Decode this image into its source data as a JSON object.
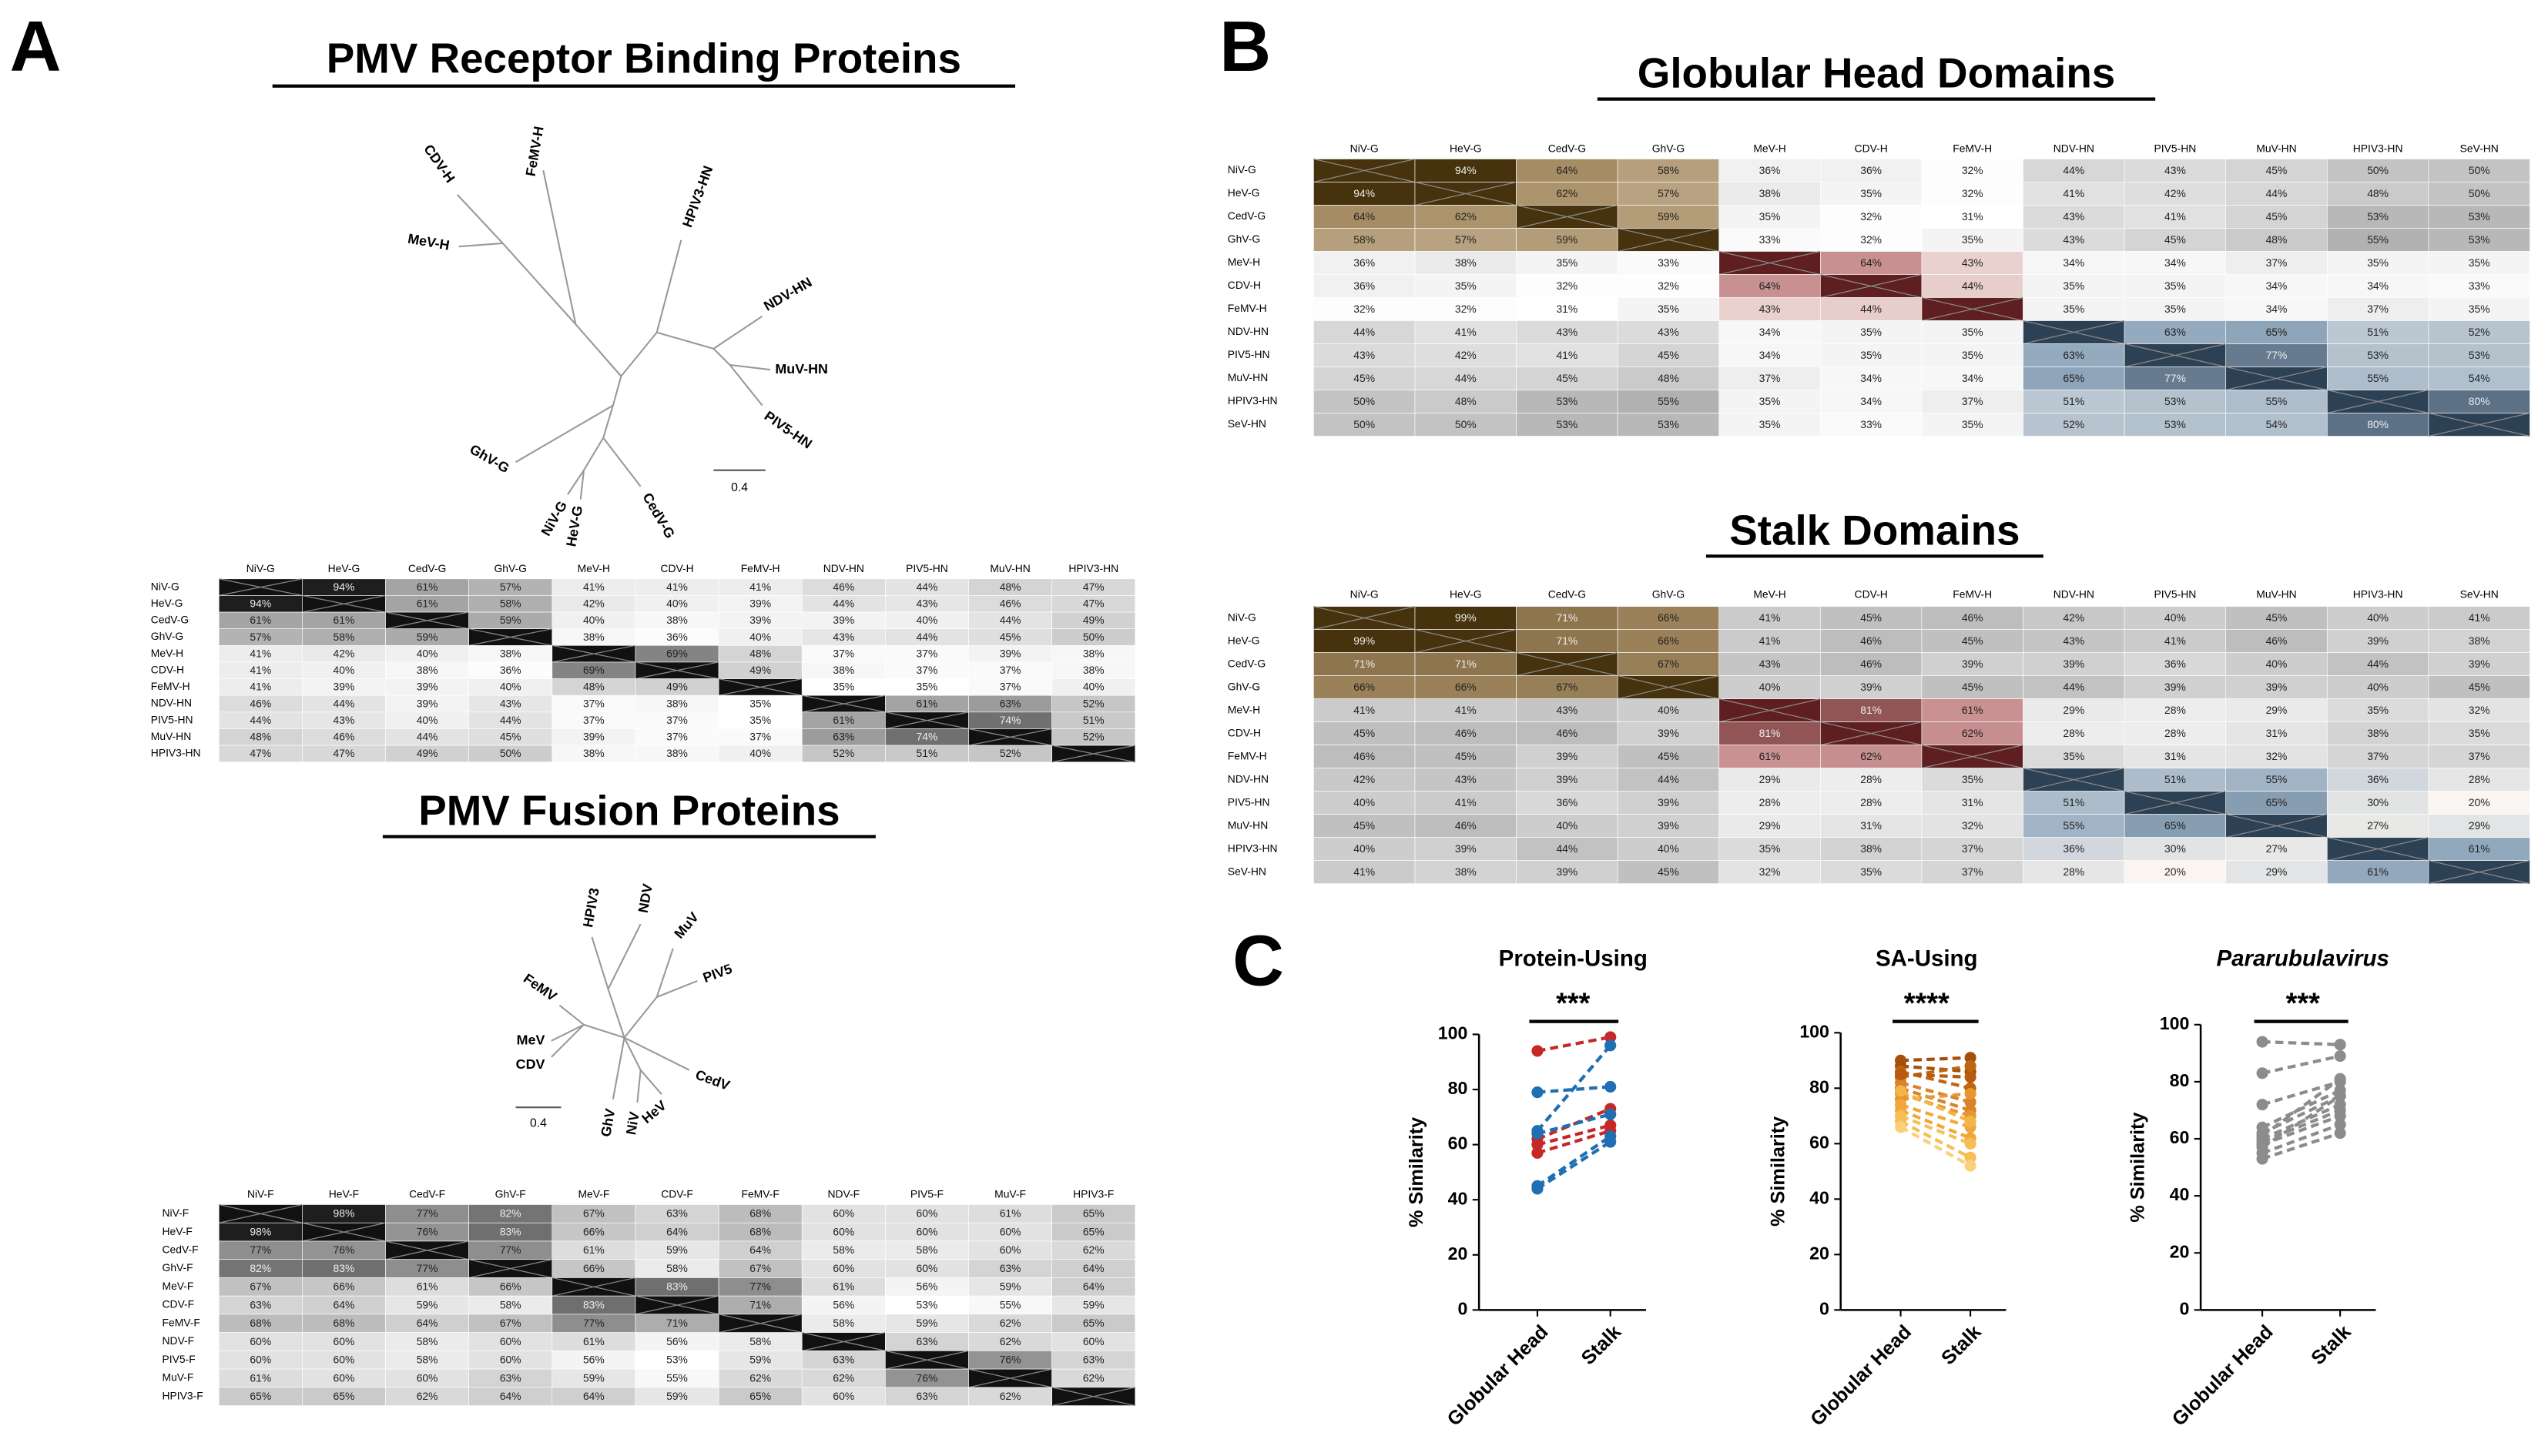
{
  "panel_labels": [
    "A",
    "B",
    "C"
  ],
  "panel_a": {
    "rbp": {
      "title": "PMV Receptor Binding Proteins",
      "tree": {
        "labels": [
          "FeMV-H",
          "CDV-H",
          "MeV-H",
          "HPIV3-HN",
          "NDV-HN",
          "MuV-HN",
          "PIV5-HN",
          "GhV-G",
          "NiV-G",
          "HeV-G",
          "CedV-G"
        ],
        "scale": "0.4"
      },
      "matrix": {
        "columns": [
          "NiV-G",
          "HeV-G",
          "CedV-G",
          "GhV-G",
          "MeV-H",
          "CDV-H",
          "FeMV-H",
          "NDV-HN",
          "PIV5-HN",
          "MuV-HN",
          "HPIV3-HN"
        ],
        "rows": [
          "NiV-G",
          "HeV-G",
          "CedV-G",
          "GhV-G",
          "MeV-H",
          "CDV-H",
          "FeMV-H",
          "NDV-HN",
          "PIV5-HN",
          "MuV-HN",
          "HPIV3-HN"
        ],
        "cells": [
          [
            null,
            "94%",
            "61%",
            "57%",
            "41%",
            "41%",
            "41%",
            "46%",
            "44%",
            "48%",
            "47%"
          ],
          [
            "94%",
            null,
            "61%",
            "58%",
            "42%",
            "40%",
            "39%",
            "44%",
            "43%",
            "46%",
            "47%"
          ],
          [
            "61%",
            "61%",
            null,
            "59%",
            "40%",
            "38%",
            "39%",
            "39%",
            "40%",
            "44%",
            "49%"
          ],
          [
            "57%",
            "58%",
            "59%",
            null,
            "38%",
            "36%",
            "40%",
            "43%",
            "44%",
            "45%",
            "50%"
          ],
          [
            "41%",
            "42%",
            "40%",
            "38%",
            null,
            "69%",
            "48%",
            "37%",
            "37%",
            "39%",
            "38%"
          ],
          [
            "41%",
            "40%",
            "38%",
            "36%",
            "69%",
            null,
            "49%",
            "38%",
            "37%",
            "37%",
            "38%"
          ],
          [
            "41%",
            "39%",
            "39%",
            "40%",
            "48%",
            "49%",
            null,
            "35%",
            "35%",
            "37%",
            "40%"
          ],
          [
            "46%",
            "44%",
            "39%",
            "43%",
            "37%",
            "38%",
            "35%",
            null,
            "61%",
            "63%",
            "52%"
          ],
          [
            "44%",
            "43%",
            "40%",
            "44%",
            "37%",
            "37%",
            "35%",
            "61%",
            null,
            "74%",
            "51%"
          ],
          [
            "48%",
            "46%",
            "44%",
            "45%",
            "39%",
            "37%",
            "37%",
            "63%",
            "74%",
            null,
            "52%"
          ],
          [
            "47%",
            "47%",
            "49%",
            "50%",
            "38%",
            "38%",
            "40%",
            "52%",
            "51%",
            "52%",
            null
          ]
        ]
      }
    },
    "fusion": {
      "title": "PMV Fusion Proteins",
      "tree": {
        "labels": [
          "HPIV3",
          "NDV",
          "MuV",
          "PIV5",
          "FeMV",
          "MeV",
          "CDV",
          "GhV",
          "NiV",
          "HeV",
          "CedV"
        ],
        "scale": "0.4"
      },
      "matrix": {
        "columns": [
          "NiV-F",
          "HeV-F",
          "CedV-F",
          "GhV-F",
          "MeV-F",
          "CDV-F",
          "FeMV-F",
          "NDV-F",
          "PIV5-F",
          "MuV-F",
          "HPIV3-F"
        ],
        "rows": [
          "NiV-F",
          "HeV-F",
          "CedV-F",
          "GhV-F",
          "MeV-F",
          "CDV-F",
          "FeMV-F",
          "NDV-F",
          "PIV5-F",
          "MuV-F",
          "HPIV3-F"
        ],
        "cells": [
          [
            null,
            "98%",
            "77%",
            "82%",
            "67%",
            "63%",
            "68%",
            "60%",
            "60%",
            "61%",
            "65%"
          ],
          [
            "98%",
            null,
            "76%",
            "83%",
            "66%",
            "64%",
            "68%",
            "60%",
            "60%",
            "60%",
            "65%"
          ],
          [
            "77%",
            "76%",
            null,
            "77%",
            "61%",
            "59%",
            "64%",
            "58%",
            "58%",
            "60%",
            "62%"
          ],
          [
            "82%",
            "83%",
            "77%",
            null,
            "66%",
            "58%",
            "67%",
            "60%",
            "60%",
            "63%",
            "64%"
          ],
          [
            "67%",
            "66%",
            "61%",
            "66%",
            null,
            "83%",
            "77%",
            "61%",
            "56%",
            "59%",
            "64%"
          ],
          [
            "63%",
            "64%",
            "59%",
            "58%",
            "83%",
            null,
            "71%",
            "56%",
            "53%",
            "55%",
            "59%"
          ],
          [
            "68%",
            "68%",
            "64%",
            "67%",
            "77%",
            "71%",
            null,
            "58%",
            "59%",
            "62%",
            "65%"
          ],
          [
            "60%",
            "60%",
            "58%",
            "60%",
            "61%",
            "56%",
            "58%",
            null,
            "63%",
            "62%",
            "60%"
          ],
          [
            "60%",
            "60%",
            "58%",
            "60%",
            "56%",
            "53%",
            "59%",
            "63%",
            null,
            "76%",
            "63%"
          ],
          [
            "61%",
            "60%",
            "60%",
            "63%",
            "59%",
            "55%",
            "62%",
            "62%",
            "76%",
            null,
            "62%"
          ],
          [
            "65%",
            "65%",
            "62%",
            "64%",
            "64%",
            "59%",
            "65%",
            "60%",
            "63%",
            "62%",
            null
          ]
        ]
      }
    }
  },
  "panel_b": {
    "globular": {
      "title": "Globular Head Domains",
      "matrix": {
        "columns": [
          "NiV-G",
          "HeV-G",
          "CedV-G",
          "GhV-G",
          "MeV-H",
          "CDV-H",
          "FeMV-H",
          "NDV-HN",
          "PIV5-HN",
          "MuV-HN",
          "HPIV3-HN",
          "SeV-HN"
        ],
        "rows": [
          "NiV-G",
          "HeV-G",
          "CedV-G",
          "GhV-G",
          "MeV-H",
          "CDV-H",
          "FeMV-H",
          "NDV-HN",
          "PIV5-HN",
          "MuV-HN",
          "HPIV3-HN",
          "SeV-HN"
        ],
        "cells": [
          [
            null,
            "94%",
            "64%",
            "58%",
            "36%",
            "36%",
            "32%",
            "44%",
            "43%",
            "45%",
            "50%",
            "50%"
          ],
          [
            "94%",
            null,
            "62%",
            "57%",
            "38%",
            "35%",
            "32%",
            "41%",
            "42%",
            "44%",
            "48%",
            "50%"
          ],
          [
            "64%",
            "62%",
            null,
            "59%",
            "35%",
            "32%",
            "31%",
            "43%",
            "41%",
            "45%",
            "53%",
            "53%"
          ],
          [
            "58%",
            "57%",
            "59%",
            null,
            "33%",
            "32%",
            "35%",
            "43%",
            "45%",
            "48%",
            "55%",
            "53%"
          ],
          [
            "36%",
            "38%",
            "35%",
            "33%",
            null,
            "64%",
            "43%",
            "34%",
            "34%",
            "37%",
            "35%",
            "35%"
          ],
          [
            "36%",
            "35%",
            "32%",
            "32%",
            "64%",
            null,
            "44%",
            "35%",
            "35%",
            "34%",
            "34%",
            "33%"
          ],
          [
            "32%",
            "32%",
            "31%",
            "35%",
            "43%",
            "44%",
            null,
            "35%",
            "35%",
            "34%",
            "37%",
            "35%"
          ],
          [
            "44%",
            "41%",
            "43%",
            "43%",
            "34%",
            "35%",
            "35%",
            null,
            "63%",
            "65%",
            "51%",
            "52%"
          ],
          [
            "43%",
            "42%",
            "41%",
            "45%",
            "34%",
            "35%",
            "35%",
            "63%",
            null,
            "77%",
            "53%",
            "53%"
          ],
          [
            "45%",
            "44%",
            "45%",
            "48%",
            "37%",
            "34%",
            "34%",
            "65%",
            "77%",
            null,
            "55%",
            "54%"
          ],
          [
            "50%",
            "48%",
            "53%",
            "55%",
            "35%",
            "34%",
            "37%",
            "51%",
            "53%",
            "55%",
            null,
            "80%"
          ],
          [
            "50%",
            "50%",
            "53%",
            "53%",
            "35%",
            "33%",
            "35%",
            "52%",
            "53%",
            "54%",
            "80%",
            null
          ]
        ]
      }
    },
    "stalk": {
      "title": "Stalk Domains",
      "matrix": {
        "columns": [
          "NiV-G",
          "HeV-G",
          "CedV-G",
          "GhV-G",
          "MeV-H",
          "CDV-H",
          "FeMV-H",
          "NDV-HN",
          "PIV5-HN",
          "MuV-HN",
          "HPIV3-HN",
          "SeV-HN"
        ],
        "rows": [
          "NiV-G",
          "HeV-G",
          "CedV-G",
          "GhV-G",
          "MeV-H",
          "CDV-H",
          "FeMV-H",
          "NDV-HN",
          "PIV5-HN",
          "MuV-HN",
          "HPIV3-HN",
          "SeV-HN"
        ],
        "cells": [
          [
            null,
            "99%",
            "71%",
            "66%",
            "41%",
            "45%",
            "46%",
            "42%",
            "40%",
            "45%",
            "40%",
            "41%"
          ],
          [
            "99%",
            null,
            "71%",
            "66%",
            "41%",
            "46%",
            "45%",
            "43%",
            "41%",
            "46%",
            "39%",
            "38%"
          ],
          [
            "71%",
            "71%",
            null,
            "67%",
            "43%",
            "46%",
            "39%",
            "39%",
            "36%",
            "40%",
            "44%",
            "39%"
          ],
          [
            "66%",
            "66%",
            "67%",
            null,
            "40%",
            "39%",
            "45%",
            "44%",
            "39%",
            "39%",
            "40%",
            "45%"
          ],
          [
            "41%",
            "41%",
            "43%",
            "40%",
            null,
            "81%",
            "61%",
            "29%",
            "28%",
            "29%",
            "35%",
            "32%"
          ],
          [
            "45%",
            "46%",
            "46%",
            "39%",
            "81%",
            null,
            "62%",
            "28%",
            "28%",
            "31%",
            "38%",
            "35%"
          ],
          [
            "46%",
            "45%",
            "39%",
            "45%",
            "61%",
            "62%",
            null,
            "35%",
            "31%",
            "32%",
            "37%",
            "37%"
          ],
          [
            "42%",
            "43%",
            "39%",
            "44%",
            "29%",
            "28%",
            "35%",
            null,
            "51%",
            "55%",
            "36%",
            "28%"
          ],
          [
            "40%",
            "41%",
            "36%",
            "39%",
            "28%",
            "28%",
            "31%",
            "51%",
            null,
            "65%",
            "30%",
            "20%"
          ],
          [
            "45%",
            "46%",
            "40%",
            "39%",
            "29%",
            "31%",
            "32%",
            "55%",
            "65%",
            null,
            "27%",
            "29%"
          ],
          [
            "40%",
            "39%",
            "44%",
            "40%",
            "35%",
            "38%",
            "37%",
            "36%",
            "30%",
            "27%",
            null,
            "61%"
          ],
          [
            "41%",
            "38%",
            "39%",
            "45%",
            "32%",
            "35%",
            "37%",
            "28%",
            "20%",
            "29%",
            "61%",
            null
          ]
        ]
      }
    }
  },
  "chart_data": [
    {
      "type": "line",
      "title": "Protein-Using",
      "annotation": "***",
      "ylabel": "% Similarity",
      "categories": [
        "Globular Head",
        "Stalk"
      ],
      "ylim": [
        0,
        100
      ],
      "yticks": [
        0,
        20,
        40,
        60,
        80,
        100
      ],
      "series": [
        {
          "color": "#c62828",
          "values": [
            94,
            99
          ]
        },
        {
          "color": "#c62828",
          "values": [
            62,
            73
          ]
        },
        {
          "color": "#c62828",
          "values": [
            60,
            67
          ]
        },
        {
          "color": "#c62828",
          "values": [
            57,
            65
          ]
        },
        {
          "color": "#1f6fb2",
          "values": [
            79,
            81
          ]
        },
        {
          "color": "#1f6fb2",
          "values": [
            65,
            96
          ]
        },
        {
          "color": "#1f6fb2",
          "values": [
            64,
            71
          ]
        },
        {
          "color": "#1f6fb2",
          "values": [
            45,
            63
          ]
        },
        {
          "color": "#1f6fb2",
          "values": [
            44,
            61
          ]
        }
      ]
    },
    {
      "type": "line",
      "title": "SA-Using",
      "annotation": "****",
      "ylabel": "% Similarity",
      "categories": [
        "Globular Head",
        "Stalk"
      ],
      "ylim": [
        0,
        100
      ],
      "yticks": [
        0,
        20,
        40,
        60,
        80,
        100
      ],
      "series": [
        {
          "color": "#a4500c",
          "values": [
            90,
            91
          ]
        },
        {
          "color": "#a4500c",
          "values": [
            88,
            86
          ]
        },
        {
          "color": "#c0650f",
          "values": [
            86,
            80
          ]
        },
        {
          "color": "#c0650f",
          "values": [
            84,
            88
          ]
        },
        {
          "color": "#d9822b",
          "values": [
            82,
            75
          ]
        },
        {
          "color": "#d9822b",
          "values": [
            80,
            72
          ]
        },
        {
          "color": "#e8962e",
          "values": [
            78,
            70
          ]
        },
        {
          "color": "#e8962e",
          "values": [
            76,
            78
          ]
        },
        {
          "color": "#f0a83c",
          "values": [
            74,
            66
          ]
        },
        {
          "color": "#f0a83c",
          "values": [
            72,
            62
          ]
        },
        {
          "color": "#f6bf55",
          "values": [
            70,
            60
          ]
        },
        {
          "color": "#f6bf55",
          "values": [
            68,
            55
          ]
        },
        {
          "color": "#fbd07a",
          "values": [
            66,
            52
          ]
        },
        {
          "color": "#b85a10",
          "values": [
            85,
            84
          ]
        },
        {
          "color": "#f2b548",
          "values": [
            79,
            68
          ]
        }
      ]
    },
    {
      "type": "line",
      "title": "Pararubulavirus",
      "annotation": "***",
      "ylabel": "% Similarity",
      "categories": [
        "Globular Head",
        "Stalk"
      ],
      "ylim": [
        0,
        100
      ],
      "yticks": [
        0,
        20,
        40,
        60,
        80,
        100
      ],
      "series": [
        {
          "color": "#8c8c8c",
          "values": [
            94,
            93
          ]
        },
        {
          "color": "#8c8c8c",
          "values": [
            83,
            89
          ]
        },
        {
          "color": "#8c8c8c",
          "values": [
            72,
            80
          ]
        },
        {
          "color": "#8c8c8c",
          "values": [
            64,
            77
          ]
        },
        {
          "color": "#8c8c8c",
          "values": [
            62,
            75
          ]
        },
        {
          "color": "#8c8c8c",
          "values": [
            60,
            72
          ]
        },
        {
          "color": "#8c8c8c",
          "values": [
            59,
            70
          ]
        },
        {
          "color": "#8c8c8c",
          "values": [
            58,
            68
          ]
        },
        {
          "color": "#8c8c8c",
          "values": [
            57,
            75
          ]
        },
        {
          "color": "#8c8c8c",
          "values": [
            55,
            65
          ]
        },
        {
          "color": "#8c8c8c",
          "values": [
            53,
            62
          ]
        },
        {
          "color": "#8c8c8c",
          "values": [
            61,
            81
          ]
        }
      ]
    }
  ]
}
